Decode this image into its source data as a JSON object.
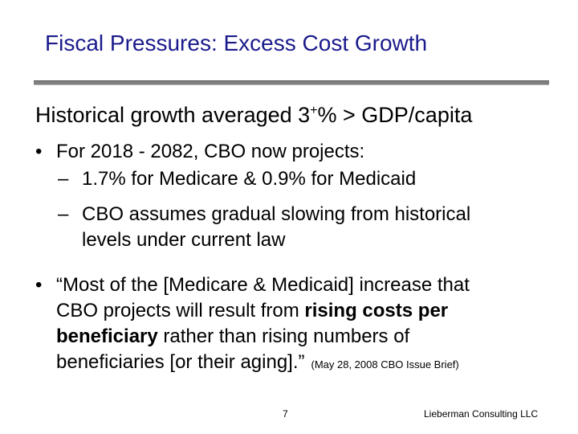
{
  "slide": {
    "title": "Fiscal Pressures:  Excess Cost Growth",
    "heading_prefix": "Historical growth averaged 3",
    "heading_superscript": "+",
    "heading_suffix": "% > GDP/capita",
    "bullet_symbol": "•",
    "dash_symbol": "–",
    "bullet1": {
      "text": "For 2018 - 2082, CBO now projects:",
      "subitems": [
        "1.7% for Medicare & 0.9% for Medicaid",
        "CBO assumes gradual slowing from historical",
        "levels under current law"
      ]
    },
    "bullet2": {
      "line1": "“Most of the [Medicare & Medicaid] increase that",
      "line2_normal": "CBO projects will result from ",
      "line2_bold": "rising costs per",
      "line3_bold": "beneficiary",
      "line3_normal": " rather than rising numbers of",
      "line4": "beneficiaries [or their aging].”",
      "citation": "(May 28, 2008 CBO Issue Brief)"
    }
  },
  "footer": {
    "page_number": "7",
    "company": "Lieberman Consulting LLC"
  },
  "colors": {
    "title": "#1a1a8c",
    "rule": "#808080",
    "text": "#000000"
  }
}
